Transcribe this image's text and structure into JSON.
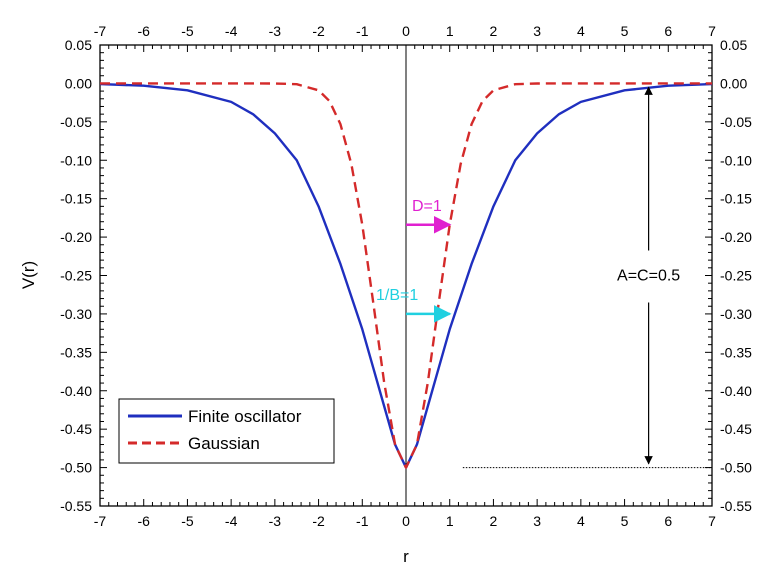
{
  "chart_data": {
    "type": "line",
    "title": "",
    "xlabel": "r",
    "ylabel": "V(r)",
    "xlim": [
      -7,
      7
    ],
    "ylim": [
      -0.55,
      0.05
    ],
    "x_ticks": [
      "-7",
      "-6",
      "-5",
      "-4",
      "-3",
      "-2",
      "-1",
      "0",
      "1",
      "2",
      "3",
      "4",
      "5",
      "6",
      "7"
    ],
    "y_ticks": [
      "0.05",
      "0.00",
      "-0.05",
      "-0.10",
      "-0.15",
      "-0.20",
      "-0.25",
      "-0.30",
      "-0.35",
      "-0.40",
      "-0.45",
      "-0.50",
      "-0.55"
    ],
    "grid": false,
    "legend_position": "bottom-left",
    "series": [
      {
        "name": "Finite oscillator",
        "color": "#1f2fbf",
        "style": "solid",
        "x": [
          -7,
          -6,
          -5,
          -4,
          -3.5,
          -3,
          -2.5,
          -2,
          -1.5,
          -1,
          -0.75,
          -0.5,
          -0.25,
          0,
          0.25,
          0.5,
          0.75,
          1,
          1.5,
          2,
          2.5,
          3,
          3.5,
          4,
          5,
          6,
          7
        ],
        "y": [
          -0.0008,
          -0.003,
          -0.009,
          -0.024,
          -0.04,
          -0.065,
          -0.1,
          -0.16,
          -0.235,
          -0.32,
          -0.37,
          -0.42,
          -0.47,
          -0.5,
          -0.47,
          -0.42,
          -0.37,
          -0.32,
          -0.235,
          -0.16,
          -0.1,
          -0.065,
          -0.04,
          -0.024,
          -0.009,
          -0.003,
          -0.0008
        ]
      },
      {
        "name": "Gaussian",
        "color": "#d42a2a",
        "style": "dashed",
        "x": [
          -7,
          -3,
          -2.5,
          -2,
          -1.75,
          -1.5,
          -1.25,
          -1,
          -0.75,
          -0.5,
          -0.25,
          0,
          0.25,
          0.5,
          0.75,
          1,
          1.25,
          1.5,
          1.75,
          2,
          2.5,
          3,
          7
        ],
        "y": [
          0,
          -0.0001,
          -0.001,
          -0.009,
          -0.023,
          -0.053,
          -0.105,
          -0.184,
          -0.285,
          -0.389,
          -0.47,
          -0.5,
          -0.47,
          -0.389,
          -0.285,
          -0.184,
          -0.105,
          -0.053,
          -0.023,
          -0.009,
          -0.001,
          -0.0001,
          0
        ]
      }
    ],
    "annotations": {
      "d_label": "D=1",
      "d_color": "#e020d0",
      "d_arrow": {
        "x1": 0,
        "x2": 1,
        "y": -0.184
      },
      "b_label": "1/B=1",
      "b_color": "#20d0e0",
      "b_arrow": {
        "x1": 0,
        "x2": 1,
        "y": -0.3
      },
      "a_label": "A=C=0.5",
      "a_arrow_x": 5.55,
      "a_top": -0.005,
      "a_bottom": -0.495,
      "dotted_line": {
        "x1": 1.3,
        "x2": 7,
        "y": -0.5
      }
    }
  }
}
